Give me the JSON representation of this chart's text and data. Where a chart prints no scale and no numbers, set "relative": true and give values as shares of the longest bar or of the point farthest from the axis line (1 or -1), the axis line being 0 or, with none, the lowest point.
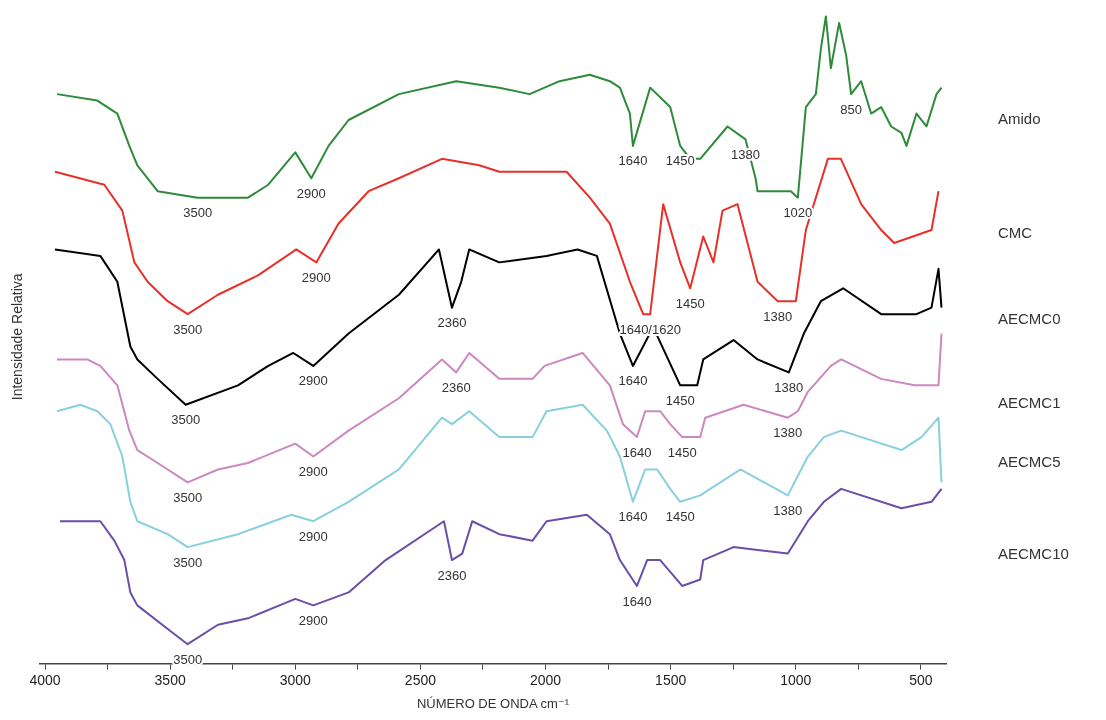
{
  "chart_data": {
    "type": "line",
    "relative": true,
    "xlabel": "NÚMERO DE ONDA cm⁻¹",
    "ylabel": "Intensidade Relativa",
    "xlim": [
      4020,
      400
    ],
    "xticks": [
      4000,
      {
        "value": 3750,
        "label": null
      },
      3500,
      {
        "value": 3250,
        "label": null
      },
      3000,
      {
        "value": 2750,
        "label": null
      },
      2500,
      {
        "value": 2250,
        "label": null
      },
      2000,
      {
        "value": 1750,
        "label": null
      },
      1500,
      {
        "value": 1250,
        "label": null
      },
      1000,
      {
        "value": 750,
        "label": null
      },
      500
    ],
    "grid": false,
    "legend": false,
    "marker": "none",
    "line_style": "solid",
    "tick_labels": "x",
    "series": [
      {
        "name": "Amido",
        "color": "#2e8b3a",
        "x": [
          3952,
          3791,
          3711,
          3663,
          3631,
          3550,
          3390,
          3189,
          3108,
          3000,
          2936,
          2867,
          2787,
          2586,
          2357,
          2185,
          2064,
          1944,
          1823,
          1743,
          1703,
          1663,
          1651,
          1582,
          1502,
          1462,
          1422,
          1382,
          1273,
          1201,
          1161,
          1153,
          1020,
          992,
          960,
          920,
          900,
          880,
          860,
          827,
          799,
          779,
          739,
          699,
          659,
          619,
          578,
          558,
          518,
          478,
          438,
          418
        ],
        "values": [
          0.88,
          0.87,
          0.85,
          0.8,
          0.77,
          0.73,
          0.72,
          0.72,
          0.74,
          0.79,
          0.75,
          0.8,
          0.84,
          0.88,
          0.9,
          0.89,
          0.88,
          0.9,
          0.91,
          0.9,
          0.89,
          0.85,
          0.8,
          0.89,
          0.86,
          0.8,
          0.78,
          0.78,
          0.83,
          0.81,
          0.75,
          0.73,
          0.73,
          0.72,
          0.86,
          0.88,
          0.95,
          1,
          0.92,
          0.99,
          0.94,
          0.88,
          0.9,
          0.85,
          0.86,
          0.83,
          0.82,
          0.8,
          0.85,
          0.83,
          0.88,
          0.89
        ]
      },
      {
        "name": "CMC",
        "color": "#e8302a",
        "x": [
          3960,
          3763,
          3691,
          3643,
          3590,
          3510,
          3430,
          3309,
          3149,
          2996,
          2916,
          2827,
          2707,
          2586,
          2414,
          2265,
          2185,
          1916,
          1823,
          1743,
          1663,
          1610,
          1582,
          1530,
          1462,
          1422,
          1370,
          1329,
          1293,
          1233,
          1153,
          1072,
          1000,
          960,
          872,
          820,
          739,
          659,
          607,
          458,
          430
        ],
        "values": [
          0.76,
          0.74,
          0.7,
          0.62,
          0.59,
          0.56,
          0.54,
          0.57,
          0.6,
          0.64,
          0.62,
          0.68,
          0.73,
          0.75,
          0.78,
          0.77,
          0.76,
          0.76,
          0.72,
          0.68,
          0.59,
          0.54,
          0.54,
          0.71,
          0.62,
          0.58,
          0.66,
          0.62,
          0.7,
          0.71,
          0.59,
          0.56,
          0.56,
          0.67,
          0.78,
          0.78,
          0.71,
          0.67,
          0.65,
          0.67,
          0.73
        ]
      },
      {
        "name": "AECMC0",
        "color": "#000000",
        "x": [
          3960,
          3779,
          3711,
          3659,
          3631,
          3550,
          3438,
          3229,
          3108,
          3008,
          2928,
          2787,
          2586,
          2426,
          2374,
          2337,
          2305,
          2185,
          1996,
          1872,
          1795,
          1703,
          1651,
          1570,
          1462,
          1394,
          1370,
          1249,
          1153,
          1028,
          968,
          900,
          811,
          659,
          518,
          458,
          430,
          418
        ],
        "values": [
          0.64,
          0.63,
          0.59,
          0.49,
          0.47,
          0.44,
          0.4,
          0.43,
          0.46,
          0.48,
          0.46,
          0.51,
          0.57,
          0.64,
          0.55,
          0.59,
          0.64,
          0.62,
          0.63,
          0.64,
          0.63,
          0.51,
          0.46,
          0.52,
          0.43,
          0.43,
          0.47,
          0.5,
          0.47,
          0.45,
          0.51,
          0.56,
          0.58,
          0.54,
          0.54,
          0.55,
          0.61,
          0.55
        ]
      },
      {
        "name": "AECMC1",
        "color": "#cc88c0",
        "x": [
          3952,
          3831,
          3779,
          3711,
          3663,
          3631,
          3550,
          3430,
          3309,
          3189,
          3000,
          2928,
          2787,
          2586,
          2414,
          2357,
          2305,
          2185,
          2052,
          2004,
          1852,
          1743,
          1691,
          1635,
          1602,
          1542,
          1502,
          1454,
          1382,
          1362,
          1209,
          1032,
          992,
          952,
          860,
          819,
          659,
          526,
          430,
          418
        ],
        "values": [
          0.47,
          0.47,
          0.46,
          0.43,
          0.36,
          0.33,
          0.31,
          0.28,
          0.3,
          0.31,
          0.34,
          0.32,
          0.36,
          0.41,
          0.47,
          0.45,
          0.48,
          0.44,
          0.44,
          0.46,
          0.48,
          0.43,
          0.37,
          0.35,
          0.39,
          0.39,
          0.37,
          0.35,
          0.35,
          0.38,
          0.4,
          0.38,
          0.39,
          0.42,
          0.46,
          0.47,
          0.44,
          0.43,
          0.43,
          0.51
        ]
      },
      {
        "name": "AECMC5",
        "color": "#88d0de",
        "x": [
          3952,
          3859,
          3791,
          3739,
          3691,
          3659,
          3631,
          3510,
          3430,
          3229,
          3016,
          2928,
          2787,
          2586,
          2414,
          2374,
          2305,
          2185,
          2052,
          1996,
          1852,
          1755,
          1703,
          1651,
          1602,
          1554,
          1502,
          1462,
          1382,
          1221,
          1032,
          952,
          888,
          819,
          578,
          498,
          430,
          418
        ],
        "values": [
          0.39,
          0.4,
          0.39,
          0.37,
          0.32,
          0.25,
          0.22,
          0.2,
          0.18,
          0.2,
          0.23,
          0.22,
          0.25,
          0.3,
          0.38,
          0.37,
          0.39,
          0.35,
          0.35,
          0.39,
          0.4,
          0.36,
          0.32,
          0.25,
          0.3,
          0.3,
          0.27,
          0.25,
          0.26,
          0.3,
          0.26,
          0.32,
          0.35,
          0.36,
          0.33,
          0.35,
          0.38,
          0.28
        ]
      },
      {
        "name": "AECMC10",
        "color": "#6a4fa8",
        "x": [
          3940,
          3859,
          3779,
          3723,
          3683,
          3659,
          3631,
          3498,
          3430,
          3309,
          3189,
          3000,
          2928,
          2787,
          2639,
          2406,
          2374,
          2333,
          2293,
          2185,
          2052,
          1996,
          1835,
          1743,
          1703,
          1635,
          1594,
          1542,
          1454,
          1382,
          1370,
          1249,
          1032,
          952,
          888,
          819,
          578,
          458,
          418
        ],
        "values": [
          0.22,
          0.22,
          0.22,
          0.19,
          0.16,
          0.11,
          0.09,
          0.05,
          0.03,
          0.06,
          0.07,
          0.1,
          0.09,
          0.11,
          0.16,
          0.22,
          0.16,
          0.17,
          0.22,
          0.2,
          0.19,
          0.22,
          0.23,
          0.2,
          0.16,
          0.12,
          0.16,
          0.16,
          0.12,
          0.13,
          0.16,
          0.18,
          0.17,
          0.22,
          0.25,
          0.27,
          0.24,
          0.25,
          0.27
        ]
      }
    ],
    "annotations": [
      {
        "text": "3500",
        "x": 3390,
        "y": 0.72
      },
      {
        "text": "2900",
        "x": 2936,
        "y": 0.75
      },
      {
        "text": "1640",
        "x": 1651,
        "y": 0.8
      },
      {
        "text": "1450",
        "x": 1462,
        "y": 0.8
      },
      {
        "text": "1380",
        "x": 1201,
        "y": 0.81
      },
      {
        "text": "1020",
        "x": 992,
        "y": 0.72
      },
      {
        "text": "850",
        "x": 779,
        "y": 0.88
      },
      {
        "text": "3500",
        "x": 3430,
        "y": 0.54
      },
      {
        "text": "2900",
        "x": 2916,
        "y": 0.62
      },
      {
        "text": "1450",
        "x": 1422,
        "y": 0.58
      },
      {
        "text": "1380",
        "x": 1072,
        "y": 0.56
      },
      {
        "text": "1640/1620",
        "x": 1582,
        "y": 0.54
      },
      {
        "text": "2360",
        "x": 2374,
        "y": 0.55
      },
      {
        "text": "3500",
        "x": 3438,
        "y": 0.4
      },
      {
        "text": "2900",
        "x": 2928,
        "y": 0.46
      },
      {
        "text": "1640",
        "x": 1651,
        "y": 0.46
      },
      {
        "text": "1450",
        "x": 1462,
        "y": 0.43
      },
      {
        "text": "1380",
        "x": 1028,
        "y": 0.45
      },
      {
        "text": "2360",
        "x": 2357,
        "y": 0.45
      },
      {
        "text": "3500",
        "x": 3430,
        "y": 0.28
      },
      {
        "text": "2900",
        "x": 2928,
        "y": 0.32
      },
      {
        "text": "1640",
        "x": 1635,
        "y": 0.35
      },
      {
        "text": "1450",
        "x": 1454,
        "y": 0.35
      },
      {
        "text": "1380",
        "x": 1032,
        "y": 0.38
      },
      {
        "text": "3500",
        "x": 3430,
        "y": 0.18
      },
      {
        "text": "2900",
        "x": 2928,
        "y": 0.22
      },
      {
        "text": "1640",
        "x": 1651,
        "y": 0.25
      },
      {
        "text": "1450",
        "x": 1462,
        "y": 0.25
      },
      {
        "text": "1380",
        "x": 1032,
        "y": 0.26
      },
      {
        "text": "2360",
        "x": 2374,
        "y": 0.16
      },
      {
        "text": "1640",
        "x": 1635,
        "y": 0.12
      },
      {
        "text": "2900",
        "x": 2928,
        "y": 0.09
      },
      {
        "text": "3500",
        "x": 3430,
        "y": 0.03
      }
    ]
  }
}
